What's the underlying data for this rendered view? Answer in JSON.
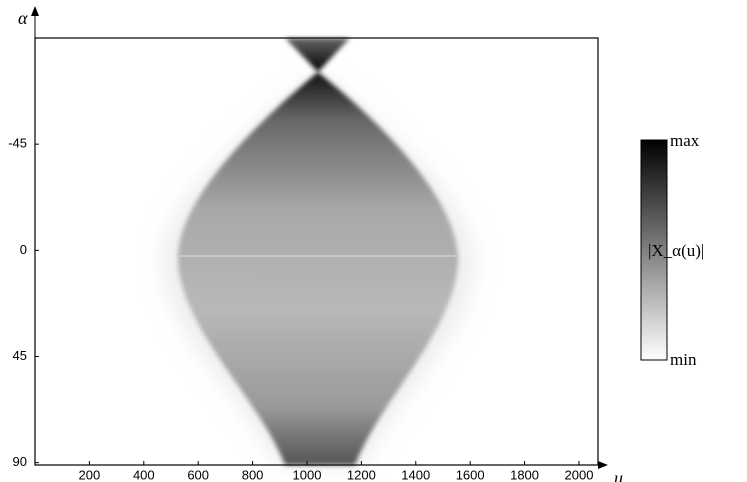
{
  "chart_data": {
    "type": "heatmap",
    "xlabel": "u",
    "ylabel": "α",
    "xlim": [
      0,
      2070
    ],
    "ylim": [
      -90,
      91
    ],
    "xticks": [
      200,
      400,
      600,
      800,
      1000,
      1200,
      1400,
      1600,
      1800,
      2000
    ],
    "yticks": [
      -45,
      0,
      45,
      90
    ],
    "colorbar": {
      "max_label": "max",
      "min_label": "min",
      "label": "|X_α(u)|"
    }
  }
}
